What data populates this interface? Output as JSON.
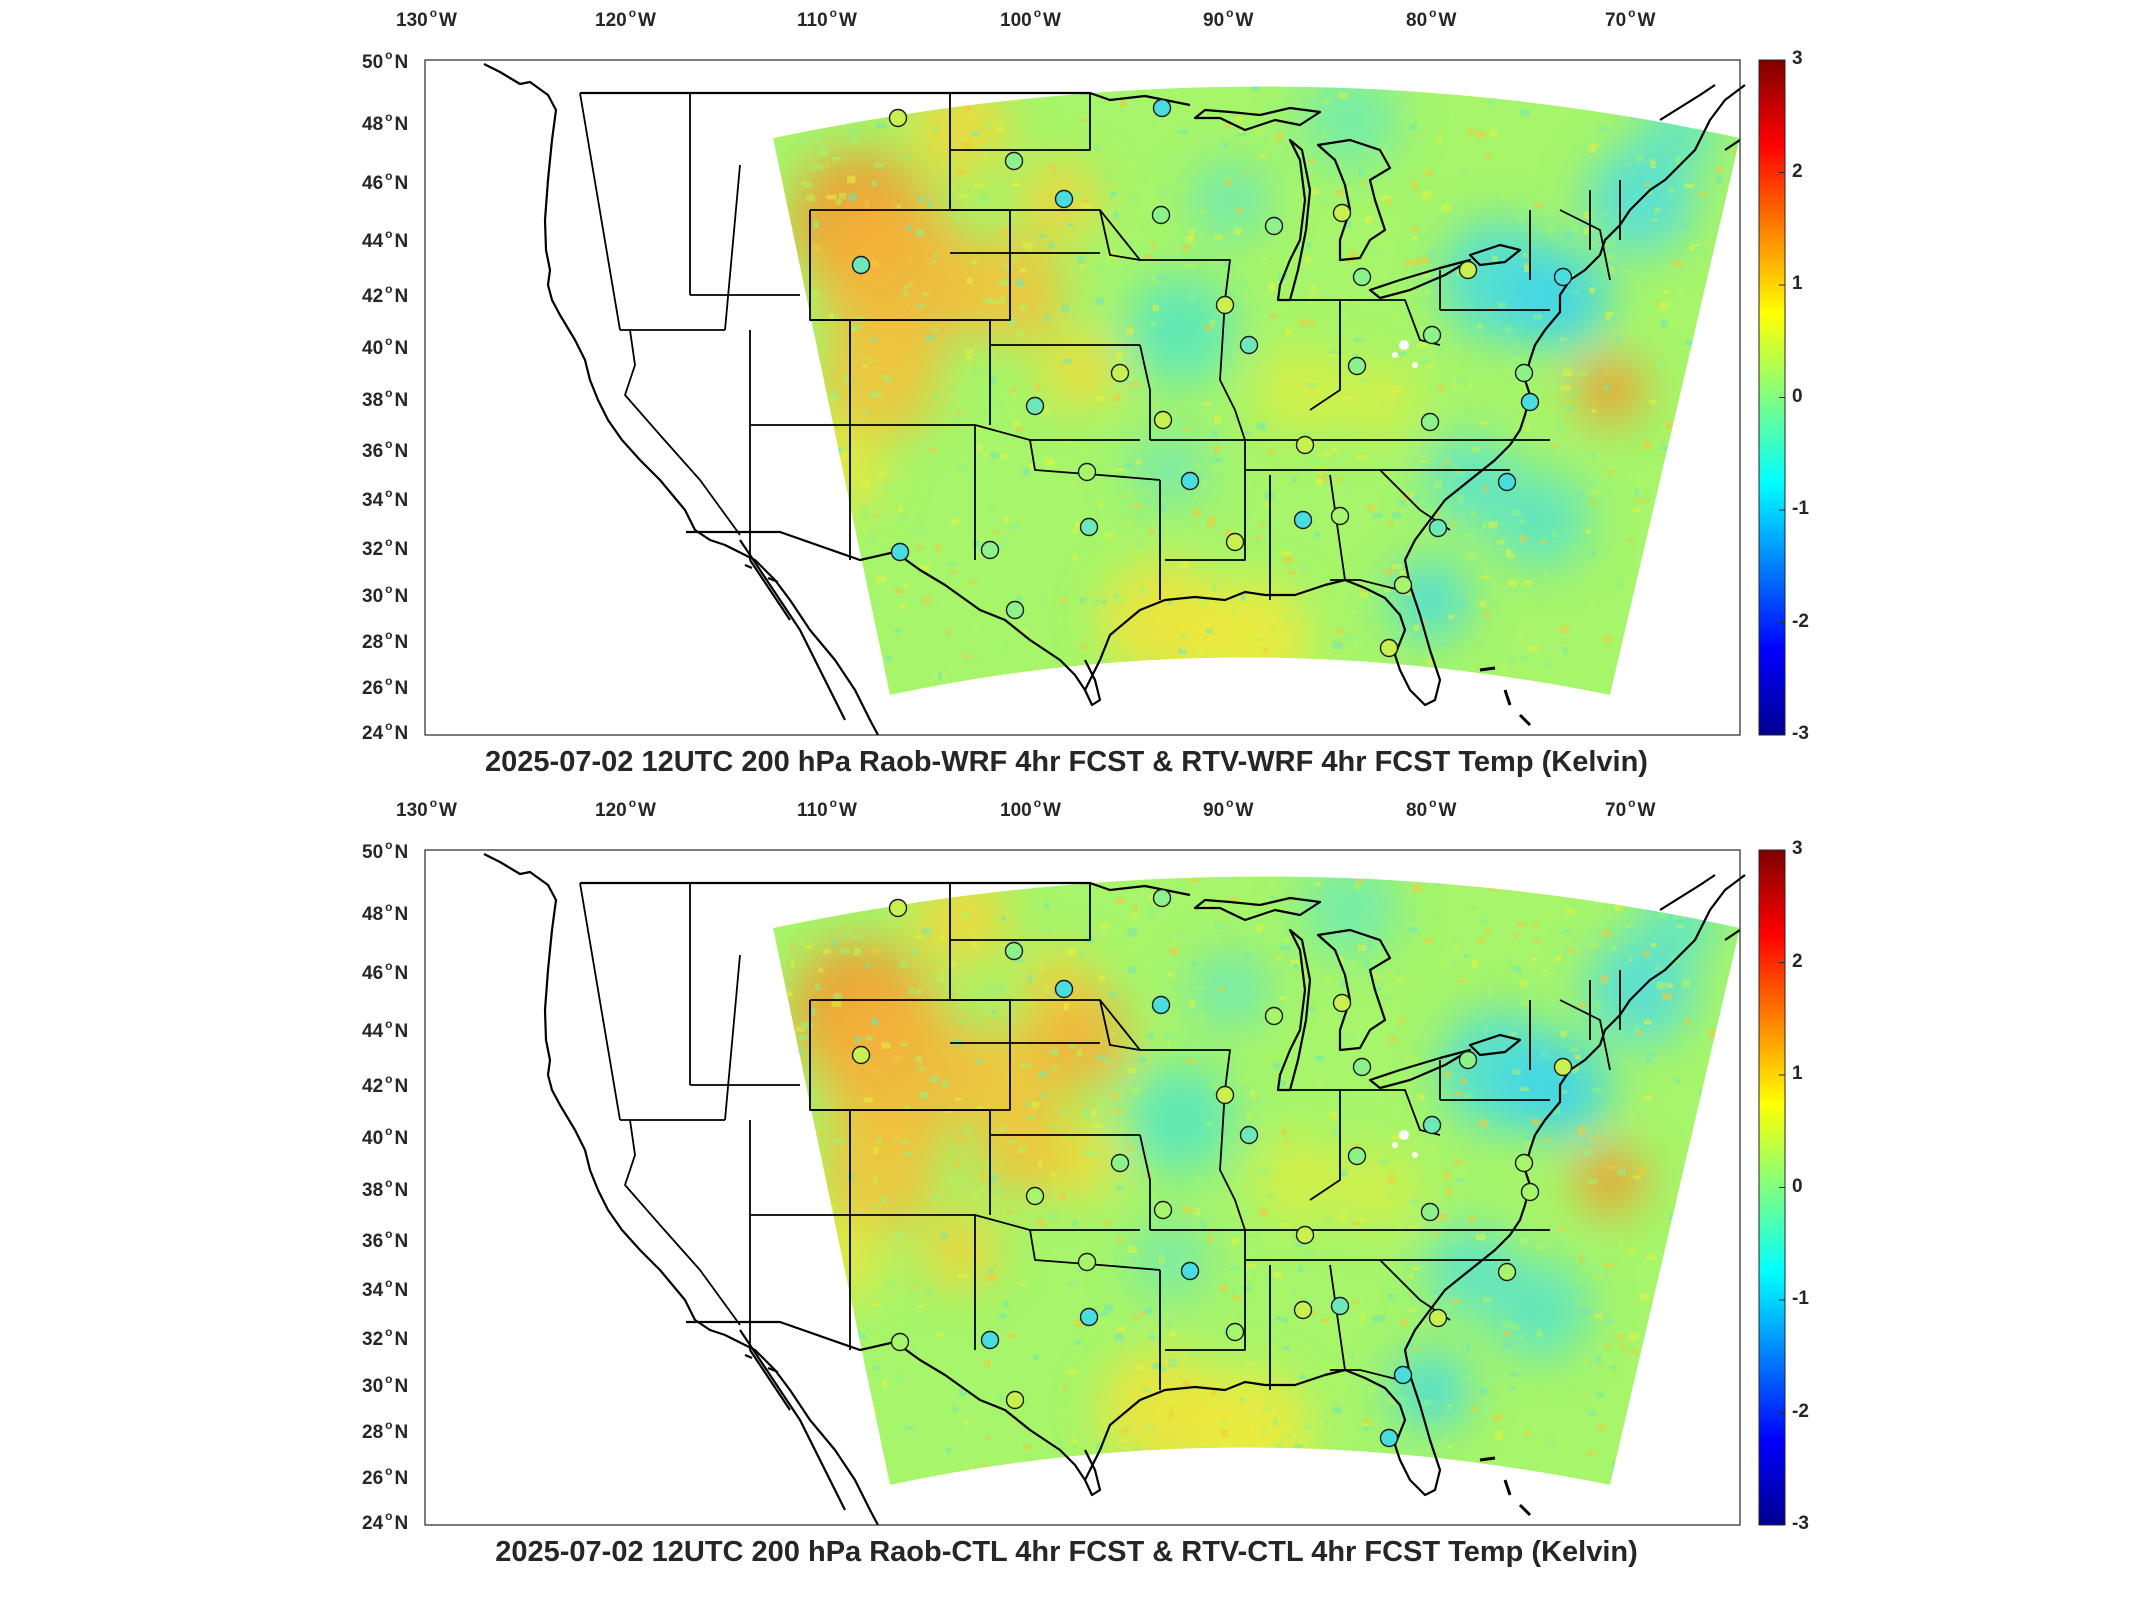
{
  "figure": {
    "panels": [
      {
        "id": "top",
        "title": "2025-07-02 12UTC 200 hPa Raob-WRF 4hr FCST & RTV-WRF 4hr FCST Temp (Kelvin)"
      },
      {
        "id": "bottom",
        "title": "2025-07-02 12UTC 200 hPa Raob-CTL 4hr FCST & RTV-CTL 4hr FCST Temp (Kelvin)"
      }
    ],
    "lon_labels": [
      {
        "num": "130",
        "hemi": "W"
      },
      {
        "num": "120",
        "hemi": "W"
      },
      {
        "num": "110",
        "hemi": "W"
      },
      {
        "num": "100",
        "hemi": "W"
      },
      {
        "num": "90",
        "hemi": "W"
      },
      {
        "num": "80",
        "hemi": "W"
      },
      {
        "num": "70",
        "hemi": "W"
      }
    ],
    "lat_labels": [
      {
        "num": "50",
        "hemi": "N"
      },
      {
        "num": "48",
        "hemi": "N"
      },
      {
        "num": "46",
        "hemi": "N"
      },
      {
        "num": "44",
        "hemi": "N"
      },
      {
        "num": "42",
        "hemi": "N"
      },
      {
        "num": "40",
        "hemi": "N"
      },
      {
        "num": "38",
        "hemi": "N"
      },
      {
        "num": "36",
        "hemi": "N"
      },
      {
        "num": "34",
        "hemi": "N"
      },
      {
        "num": "32",
        "hemi": "N"
      },
      {
        "num": "30",
        "hemi": "N"
      },
      {
        "num": "28",
        "hemi": "N"
      },
      {
        "num": "26",
        "hemi": "N"
      },
      {
        "num": "24",
        "hemi": "N"
      }
    ],
    "colorbar": {
      "ticks": [
        "3",
        "2",
        "1",
        "0",
        "-1",
        "-2",
        "-3"
      ],
      "colors": [
        "#7f0000",
        "#ff0000",
        "#ff8000",
        "#ffff00",
        "#80ff80",
        "#00ffff",
        "#0080ff",
        "#0000ff",
        "#00008f"
      ]
    }
  }
}
